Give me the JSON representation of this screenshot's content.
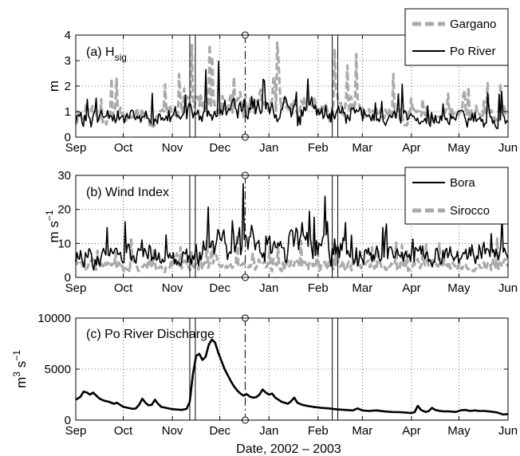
{
  "figure": {
    "xlabel": "Date, 2002 – 2003"
  },
  "months": [
    "Sep",
    "Oct",
    "Nov",
    "Dec",
    "Jan",
    "Feb",
    "Mar",
    "Apr",
    "May",
    "Jun"
  ],
  "colors": {
    "black": "#000000",
    "gray": "#aaaaaa",
    "grid": "#000000"
  },
  "chart_data": [
    {
      "type": "line",
      "panel_label_main": "(a) H",
      "panel_label_sub": "sig",
      "ylabel": "m",
      "ylim": [
        0,
        4
      ],
      "yticks": [
        "0",
        "1",
        "2",
        "3",
        "4"
      ],
      "xlim_days": [
        0,
        273
      ],
      "x_ticks": [
        "Sep",
        "Oct",
        "Nov",
        "Dec",
        "Jan",
        "Feb",
        "Mar",
        "Apr",
        "May",
        "Jun"
      ],
      "grid": true,
      "legend_position": "top-right",
      "series": [
        {
          "name": "Gargano",
          "color": "#aaaaaa",
          "style": "dashed"
        },
        {
          "name": "Po River",
          "color": "#000000",
          "style": "solid"
        }
      ]
    },
    {
      "type": "line",
      "panel_label": "(b) Wind Index",
      "ylabel_main": "m s",
      "ylabel_sup": "−1",
      "ylim": [
        0,
        30
      ],
      "yticks": [
        "0",
        "10",
        "20",
        "30"
      ],
      "xlim_days": [
        0,
        273
      ],
      "x_ticks": [
        "Sep",
        "Oct",
        "Nov",
        "Dec",
        "Jan",
        "Feb",
        "Mar",
        "Apr",
        "May",
        "Jun"
      ],
      "grid": true,
      "legend_position": "top-right",
      "series": [
        {
          "name": "Bora",
          "color": "#000000",
          "style": "solid"
        },
        {
          "name": "Sirocco",
          "color": "#aaaaaa",
          "style": "dashed"
        }
      ]
    },
    {
      "type": "line",
      "panel_label": "(c) Po River Discharge",
      "ylabel_main": "m",
      "ylabel_sup1": "3",
      "ylabel_mid": " s",
      "ylabel_sup2": "−1",
      "ylim": [
        0,
        10000
      ],
      "yticks": [
        "0",
        "5000",
        "10000"
      ],
      "xlim_days": [
        0,
        273
      ],
      "x_ticks": [
        "Sep",
        "Oct",
        "Nov",
        "Dec",
        "Jan",
        "Feb",
        "Mar",
        "Apr",
        "May",
        "Jun"
      ],
      "grid": true,
      "series": [
        {
          "name": "Po River Discharge",
          "color": "#000000",
          "style": "solid",
          "points": [
            [
              0,
              2000
            ],
            [
              3,
              2300
            ],
            [
              5,
              2800
            ],
            [
              7,
              2700
            ],
            [
              9,
              2500
            ],
            [
              11,
              2700
            ],
            [
              13,
              2400
            ],
            [
              15,
              2100
            ],
            [
              18,
              1900
            ],
            [
              21,
              1800
            ],
            [
              24,
              1600
            ],
            [
              26,
              1700
            ],
            [
              28,
              1500
            ],
            [
              30,
              1300
            ],
            [
              33,
              1200
            ],
            [
              36,
              1100
            ],
            [
              38,
              1150
            ],
            [
              40,
              1500
            ],
            [
              42,
              2100
            ],
            [
              44,
              1700
            ],
            [
              46,
              1450
            ],
            [
              48,
              1500
            ],
            [
              50,
              2000
            ],
            [
              52,
              1600
            ],
            [
              54,
              1300
            ],
            [
              57,
              1200
            ],
            [
              60,
              1100
            ],
            [
              63,
              1050
            ],
            [
              67,
              1000
            ],
            [
              70,
              1100
            ],
            [
              72,
              1800
            ],
            [
              74,
              4500
            ],
            [
              76,
              6300
            ],
            [
              78,
              6500
            ],
            [
              80,
              5900
            ],
            [
              82,
              6200
            ],
            [
              84,
              7400
            ],
            [
              86,
              7900
            ],
            [
              88,
              7600
            ],
            [
              90,
              6600
            ],
            [
              92,
              5800
            ],
            [
              94,
              5000
            ],
            [
              96,
              4400
            ],
            [
              98,
              3800
            ],
            [
              100,
              3300
            ],
            [
              102,
              2900
            ],
            [
              104,
              2600
            ],
            [
              106,
              2400
            ],
            [
              108,
              2550
            ],
            [
              110,
              2300
            ],
            [
              112,
              2200
            ],
            [
              114,
              2250
            ],
            [
              116,
              2500
            ],
            [
              118,
              3000
            ],
            [
              120,
              2700
            ],
            [
              122,
              2500
            ],
            [
              124,
              2600
            ],
            [
              126,
              2200
            ],
            [
              128,
              2000
            ],
            [
              130,
              1800
            ],
            [
              132,
              1700
            ],
            [
              134,
              1600
            ],
            [
              136,
              1850
            ],
            [
              138,
              2200
            ],
            [
              140,
              1700
            ],
            [
              143,
              1500
            ],
            [
              146,
              1400
            ],
            [
              150,
              1300
            ],
            [
              155,
              1200
            ],
            [
              160,
              1150
            ],
            [
              165,
              1050
            ],
            [
              170,
              1000
            ],
            [
              175,
              950
            ],
            [
              178,
              1150
            ],
            [
              181,
              950
            ],
            [
              185,
              900
            ],
            [
              190,
              950
            ],
            [
              195,
              850
            ],
            [
              200,
              800
            ],
            [
              205,
              780
            ],
            [
              210,
              720
            ],
            [
              212,
              700
            ],
            [
              214,
              780
            ],
            [
              216,
              1400
            ],
            [
              218,
              1000
            ],
            [
              221,
              800
            ],
            [
              223,
              900
            ],
            [
              225,
              1200
            ],
            [
              227,
              1000
            ],
            [
              230,
              900
            ],
            [
              233,
              850
            ],
            [
              236,
              850
            ],
            [
              240,
              800
            ],
            [
              243,
              950
            ],
            [
              246,
              1000
            ],
            [
              249,
              900
            ],
            [
              252,
              950
            ],
            [
              255,
              900
            ],
            [
              258,
              900
            ],
            [
              261,
              850
            ],
            [
              264,
              800
            ],
            [
              266,
              750
            ],
            [
              268,
              650
            ],
            [
              270,
              550
            ],
            [
              273,
              600
            ]
          ]
        }
      ]
    }
  ]
}
